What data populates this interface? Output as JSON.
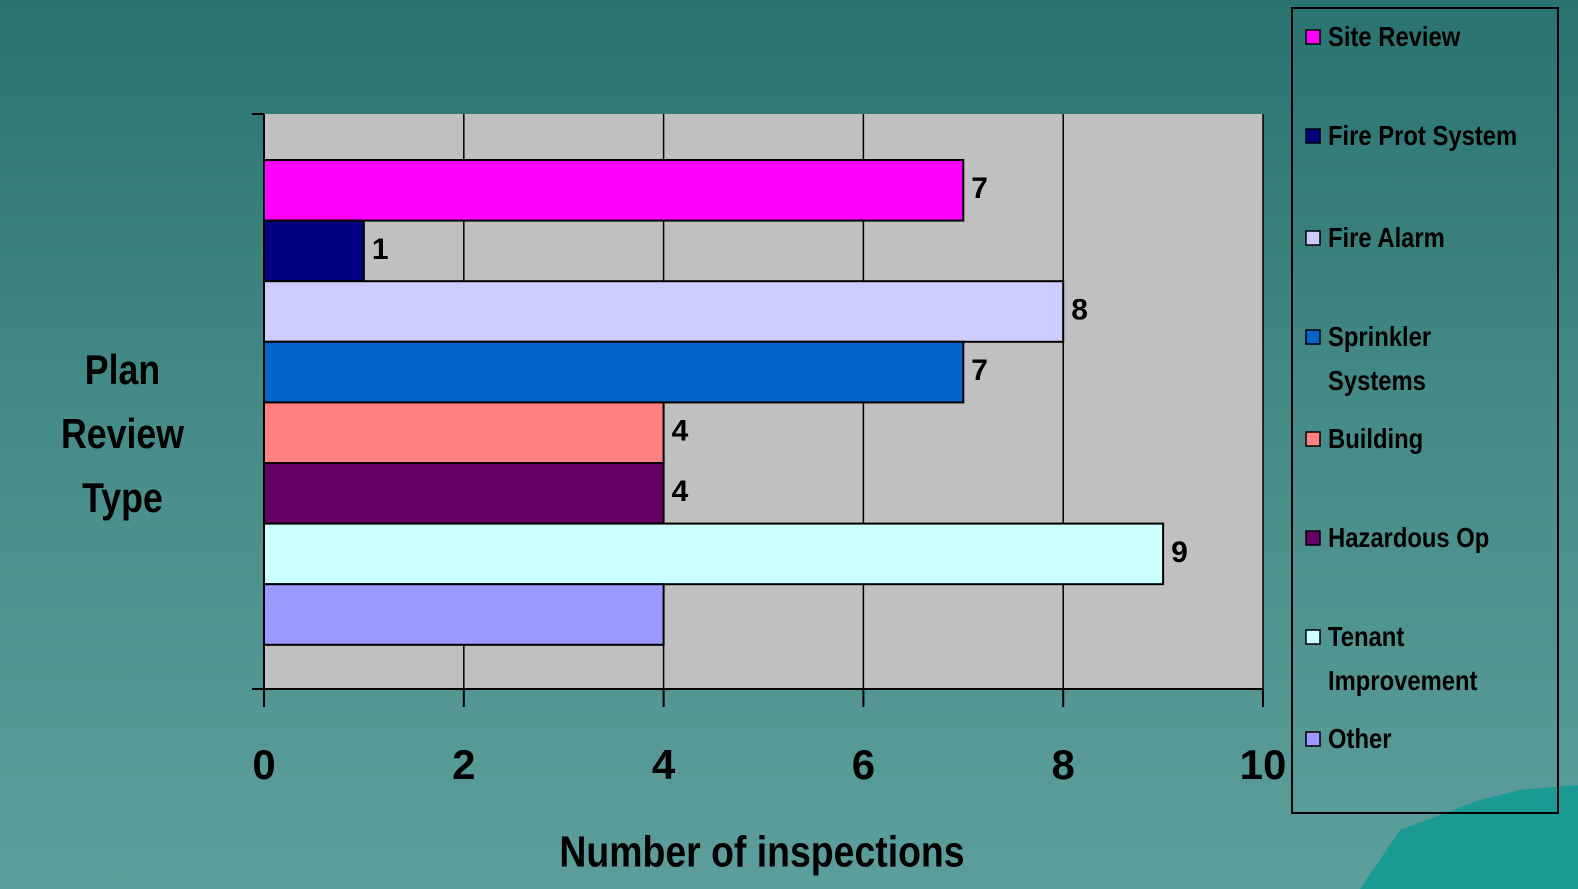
{
  "chart_data": {
    "type": "bar",
    "orientation": "horizontal",
    "xlabel": "Number of inspections",
    "ylabel": "Plan Review Type",
    "categories": [
      null
    ],
    "series": [
      {
        "name": "Site Review",
        "color": "#ff00ff",
        "values": [
          7
        ],
        "show_label": true
      },
      {
        "name": "Fire Prot System",
        "color": "#000080",
        "values": [
          1
        ],
        "show_label": true
      },
      {
        "name": "Fire Alarm",
        "color": "#ccccff",
        "values": [
          8
        ],
        "show_label": true
      },
      {
        "name": "Sprinkler Systems",
        "color": "#0066cc",
        "values": [
          7
        ],
        "show_label": true
      },
      {
        "name": "Building",
        "color": "#ff8080",
        "values": [
          4
        ],
        "show_label": true
      },
      {
        "name": "Hazardous Op",
        "color": "#660066",
        "values": [
          4
        ],
        "show_label": true
      },
      {
        "name": "Tenant Improvement",
        "color": "#ccffff",
        "values": [
          9
        ],
        "show_label": true
      },
      {
        "name": "Other",
        "color": "#9999ff",
        "values": [
          4
        ],
        "show_label": false
      }
    ],
    "xlim": [
      0,
      10
    ],
    "xticks": [
      0,
      2,
      4,
      6,
      8,
      10
    ],
    "grid": true,
    "legend": "right"
  }
}
